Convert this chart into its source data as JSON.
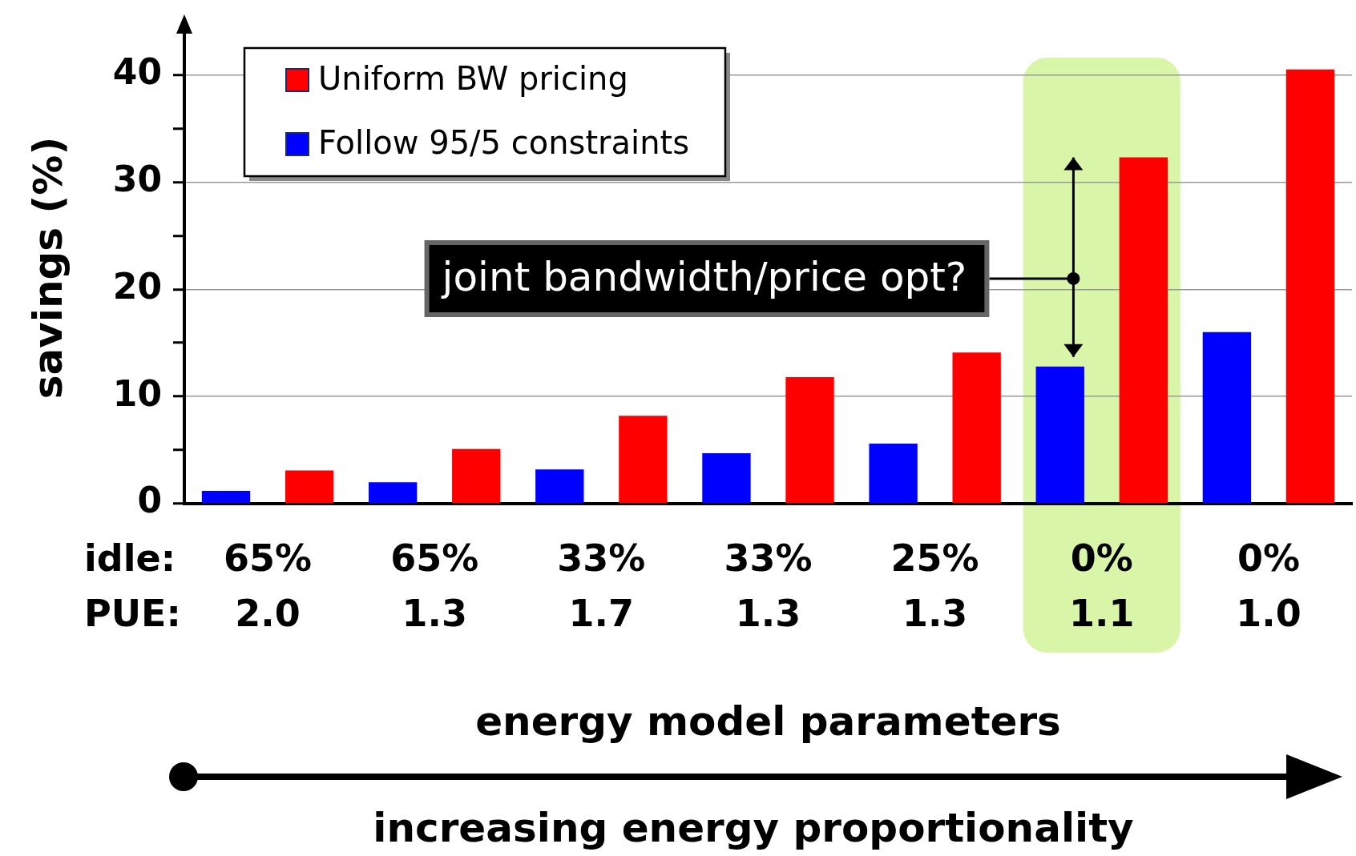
{
  "chart_data": {
    "type": "bar",
    "ylabel": "savings (%)",
    "xlabel": "energy model parameters",
    "categories": [
      "65%\n2.0",
      "65%\n1.3",
      "33%\n1.7",
      "33%\n1.3",
      "25%\n1.3",
      "0%\n1.1",
      "0%\n1.0"
    ],
    "series": [
      {
        "name": "Follow 95/5 constraints",
        "color": "#0000ff",
        "values": [
          1.2,
          2.0,
          3.2,
          4.7,
          5.6,
          12.8,
          16.0
        ]
      },
      {
        "name": "Uniform BW pricing",
        "color": "#ff0000",
        "values": [
          3.1,
          5.1,
          8.2,
          11.8,
          14.1,
          32.3,
          40.5
        ]
      }
    ],
    "ylim": [
      0,
      44
    ],
    "yticks": [
      0,
      {
        "value": 5,
        "label": null
      },
      10,
      {
        "value": 15,
        "label": null
      },
      20,
      {
        "value": 25,
        "label": null
      },
      30,
      {
        "value": 35,
        "label": null
      },
      40
    ],
    "grid": "y",
    "legend": "top left",
    "bands": [
      {
        "axis": "x",
        "from": "0%\n1.1",
        "to": "0%\n1.1",
        "color": "#d9f5a8"
      }
    ],
    "annotations": [
      "idle:",
      "PUE:",
      "increasing energy proportionality",
      "joint bandwidth/price opt?"
    ]
  }
}
